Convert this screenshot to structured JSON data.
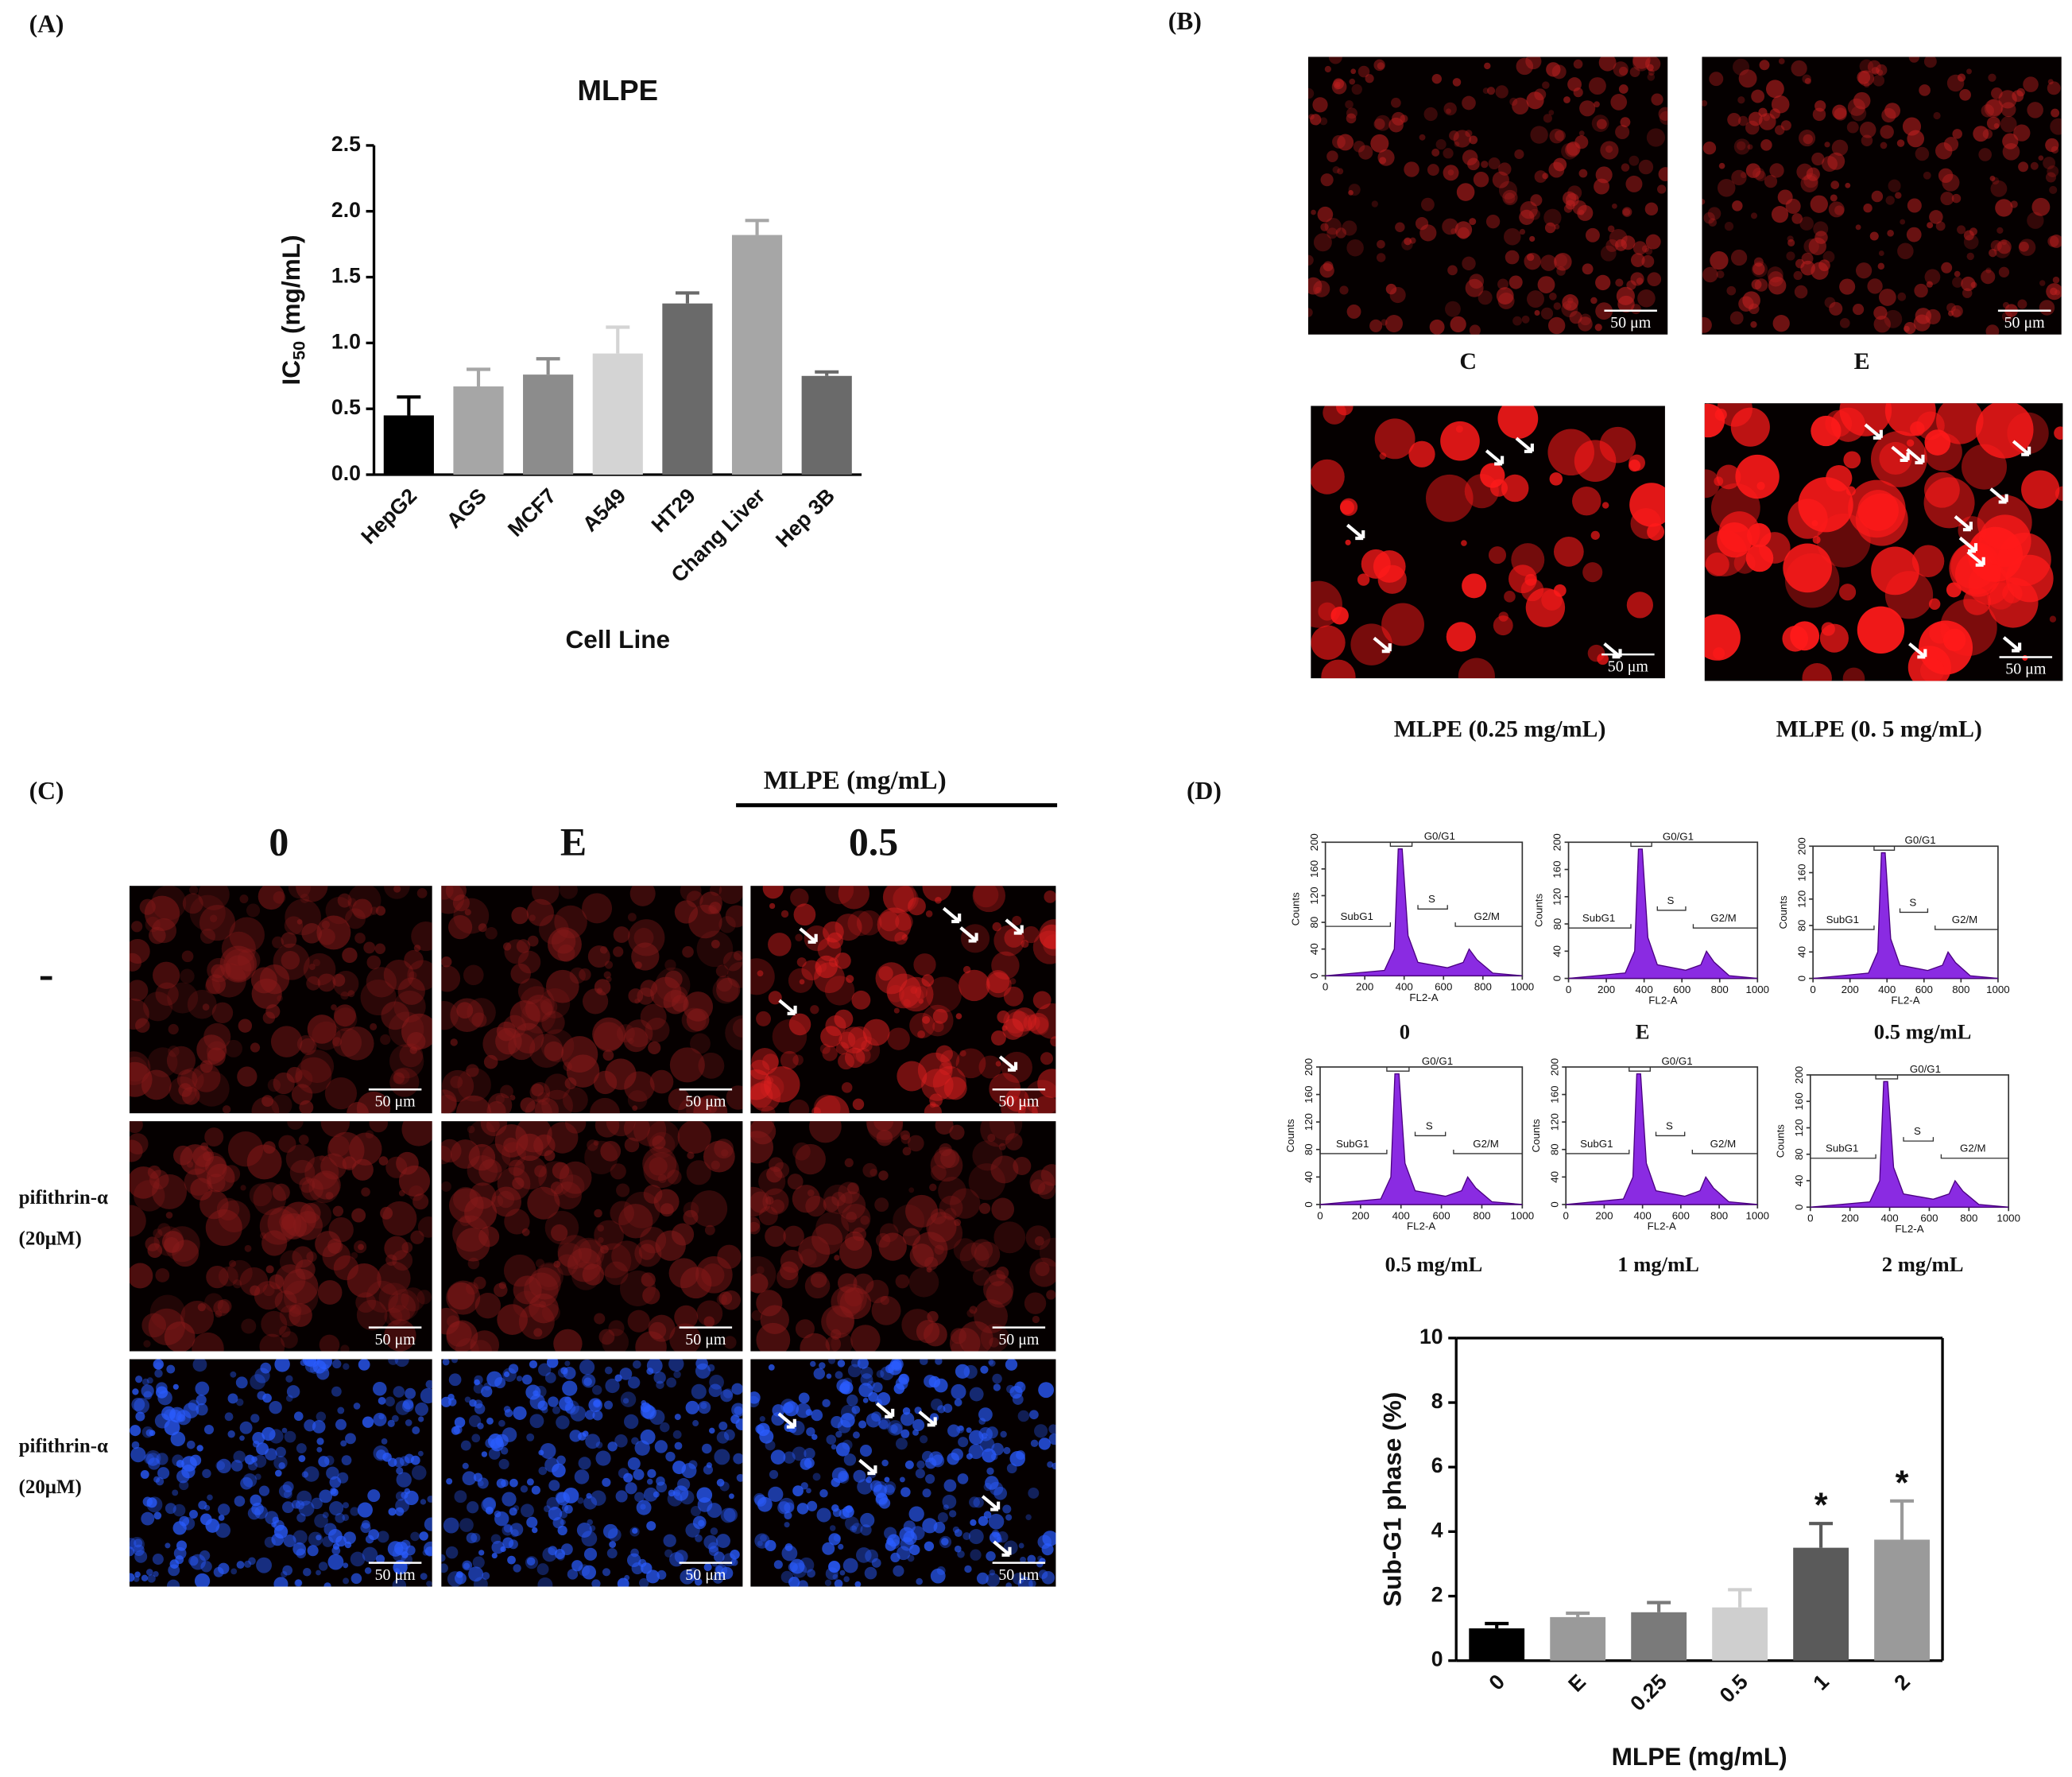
{
  "chart_data": [
    {
      "type": "bar",
      "title": "MLPE",
      "ylabel": [
        "IC",
        "50",
        " (mg/mL)"
      ],
      "xlabel": "Cell Line",
      "categories": [
        "HepG2",
        "AGS",
        "MCF7",
        "A549",
        "HT29",
        "Chang Liver",
        "Hep 3B"
      ],
      "values": [
        0.45,
        0.67,
        0.76,
        0.92,
        1.3,
        1.82,
        0.75
      ],
      "errors": [
        0.14,
        0.13,
        0.12,
        0.2,
        0.08,
        0.11,
        0.03
      ],
      "colors": [
        "#000000",
        "#a6a6a6",
        "#8c8c8c",
        "#d4d4d4",
        "#6a6a6a",
        "#a6a6a6",
        "#6a6a6a"
      ],
      "ylim": [
        0,
        2.5
      ],
      "yticks": [
        {
          "value": 0,
          "label": "0.0"
        },
        0.5,
        {
          "value": 1,
          "label": "1.0"
        },
        1.5,
        {
          "value": 2,
          "label": "2.0"
        },
        2.5
      ]
    },
    {
      "type": "bar",
      "ylabel": "Sub-G1 phase (%)",
      "xlabel": "MLPE (mg/mL)",
      "categories": [
        "0",
        "E",
        "0.25",
        "0.5",
        "1",
        "2"
      ],
      "values": [
        1.0,
        1.35,
        1.5,
        1.65,
        3.5,
        3.75
      ],
      "errors": [
        0.15,
        0.12,
        0.3,
        0.55,
        0.75,
        1.2
      ],
      "colors": [
        "#000000",
        "#9a9a9a",
        "#7a7a7a",
        "#cfcfcf",
        "#5a5a5a",
        "#9a9a9a"
      ],
      "annotations": [
        {
          "category": "1",
          "text": "*"
        },
        {
          "category": "2",
          "text": "*"
        }
      ],
      "ylim": [
        0,
        10
      ],
      "yticks": [
        0,
        2,
        4,
        6,
        8,
        10
      ]
    }
  ],
  "panel_labels": [
    "(A)",
    "(B)",
    "(C)",
    "(D)"
  ],
  "scale_bar": "50 μm",
  "panel_b": {
    "captions": [
      "C",
      "E",
      "MLPE (0.25 mg/mL)",
      "MLPE (0. 5 mg/mL)"
    ]
  },
  "panel_c": {
    "header": "MLPE (mg/mL)",
    "columns": [
      "0",
      "E",
      "0.5"
    ],
    "rows": [
      [
        "-"
      ],
      [
        "pifithrin-α",
        "(20μM)"
      ],
      [
        "pifithrin-α",
        "(20μM)"
      ]
    ]
  },
  "flow": {
    "ylabel": "Counts",
    "xlabel": "FL2-A",
    "gates": [
      "SubG1",
      "G0/G1",
      "S",
      "G2/M"
    ],
    "yticks": [
      0,
      40,
      80,
      120,
      160,
      200
    ],
    "xticks": [
      0,
      200,
      400,
      600,
      800,
      1000
    ],
    "captions": [
      "0",
      "E",
      "0.5 mg/mL",
      "0.5 mg/mL",
      "1 mg/mL",
      "2 mg/mL"
    ]
  }
}
